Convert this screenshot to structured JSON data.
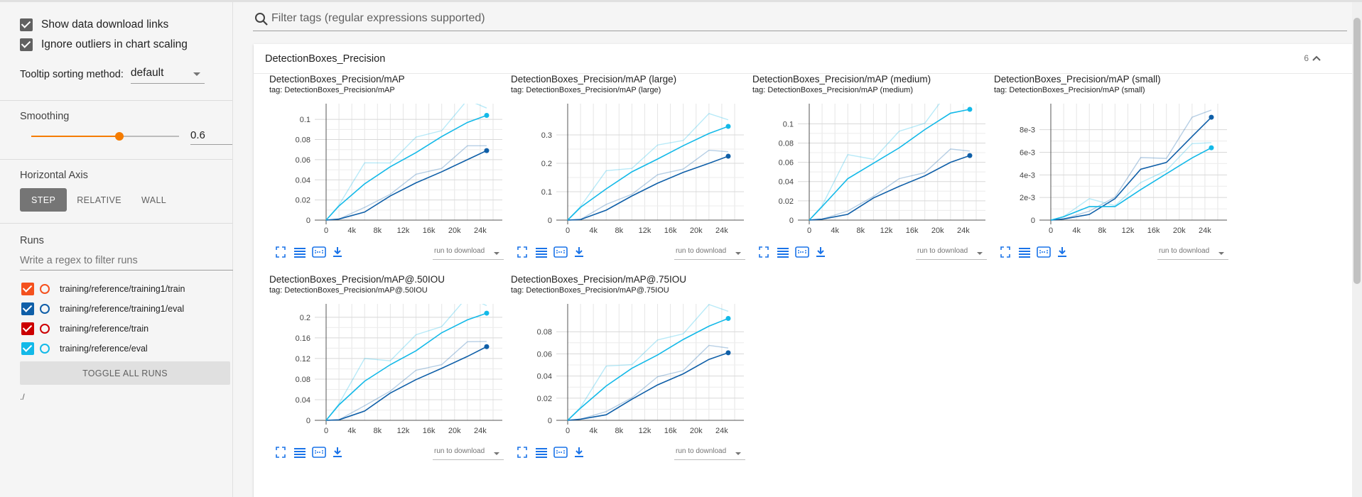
{
  "sidebar": {
    "show_download_links": "Show data download links",
    "ignore_outliers": "Ignore outliers in chart scaling",
    "tooltip_label": "Tooltip sorting method:",
    "tooltip_value": "default",
    "smoothing_title": "Smoothing",
    "smoothing_value": "0.6",
    "smoothing_level": 0.6,
    "horizontal_axis_title": "Horizontal Axis",
    "axis_buttons": [
      "STEP",
      "RELATIVE",
      "WALL"
    ],
    "runs_title": "Runs",
    "runs_filter_placeholder": "Write a regex to filter runs",
    "runs": [
      {
        "name": "training/reference/training1/train",
        "color": "#f4511e"
      },
      {
        "name": "training/reference/training1/eval",
        "color": "#0f5fa8"
      },
      {
        "name": "training/reference/train",
        "color": "#cc0000"
      },
      {
        "name": "training/reference/eval",
        "color": "#13b9e8"
      }
    ],
    "toggle_all": "TOGGLE ALL RUNS",
    "logdir": "./"
  },
  "main": {
    "filter_placeholder": "Filter tags (regular expressions supported)",
    "card_title": "DetectionBoxes_Precision",
    "card_count": "6",
    "download_label": "run to download"
  },
  "colors": {
    "dark_series": "#0f5fa8",
    "light_series": "#13b9e8",
    "accent": "#f57c00"
  },
  "chart_data": [
    {
      "type": "line",
      "title": "DetectionBoxes_Precision/mAP",
      "tag": "tag: DetectionBoxes_Precision/mAP",
      "xticks": [
        "0",
        "4k",
        "8k",
        "12k",
        "16k",
        "20k",
        "24k"
      ],
      "yticks": [
        "0",
        "0.02",
        "0.04",
        "0.06",
        "0.08",
        "0.1"
      ],
      "ylim": [
        0,
        0.11
      ],
      "series": [
        {
          "x": [
            0,
            2000,
            6000,
            10000,
            14000,
            18000,
            22000,
            25000
          ],
          "y": [
            0,
            0.001,
            0.008,
            0.024,
            0.037,
            0.048,
            0.06,
            0.069
          ]
        },
        {
          "x": [
            0,
            2000,
            6000,
            10000,
            14000,
            18000,
            22000,
            25000
          ],
          "y": [
            0,
            0.014,
            0.036,
            0.053,
            0.067,
            0.083,
            0.097,
            0.104
          ]
        }
      ]
    },
    {
      "type": "line",
      "title": "DetectionBoxes_Precision/mAP (large)",
      "tag": "tag: DetectionBoxes_Precision/mAP (large)",
      "xticks": [
        "0",
        "4k",
        "8k",
        "12k",
        "16k",
        "20k",
        "24k"
      ],
      "yticks": [
        "0",
        "0.1",
        "0.2",
        "0.3"
      ],
      "ylim": [
        0,
        0.39
      ],
      "series": [
        {
          "x": [
            0,
            2000,
            6000,
            10000,
            14000,
            18000,
            22000,
            25000
          ],
          "y": [
            0,
            0.002,
            0.035,
            0.085,
            0.13,
            0.168,
            0.2,
            0.225
          ]
        },
        {
          "x": [
            0,
            2000,
            6000,
            10000,
            14000,
            18000,
            22000,
            25000
          ],
          "y": [
            0,
            0.045,
            0.11,
            0.17,
            0.215,
            0.262,
            0.305,
            0.33
          ]
        }
      ]
    },
    {
      "type": "line",
      "title": "DetectionBoxes_Precision/mAP (medium)",
      "tag": "tag: DetectionBoxes_Precision/mAP (medium)",
      "xticks": [
        "0",
        "4k",
        "8k",
        "12k",
        "16k",
        "20k",
        "24k"
      ],
      "yticks": [
        "0",
        "0.02",
        "0.04",
        "0.06",
        "0.08",
        "0.1"
      ],
      "ylim": [
        0,
        0.115
      ],
      "series": [
        {
          "x": [
            0,
            2000,
            6000,
            10000,
            14000,
            18000,
            22000,
            25000
          ],
          "y": [
            0,
            0.001,
            0.006,
            0.023,
            0.035,
            0.046,
            0.06,
            0.067
          ]
        },
        {
          "x": [
            0,
            2000,
            6000,
            10000,
            14000,
            18000,
            22000,
            25000
          ],
          "y": [
            0,
            0.014,
            0.043,
            0.059,
            0.075,
            0.094,
            0.111,
            0.115
          ]
        }
      ]
    },
    {
      "type": "line",
      "title": "DetectionBoxes_Precision/mAP (small)",
      "tag": "tag: DetectionBoxes_Precision/mAP (small)",
      "xticks": [
        "0",
        "4k",
        "8k",
        "12k",
        "16k",
        "20k",
        "24k"
      ],
      "yticks": [
        "0",
        "2e-3",
        "4e-3",
        "6e-3",
        "8e-3"
      ],
      "ylim": [
        0,
        0.0098
      ],
      "series": [
        {
          "x": [
            0,
            2000,
            6000,
            10000,
            14000,
            18000,
            22000,
            25000
          ],
          "y": [
            0,
            0.0001,
            0.0005,
            0.0019,
            0.0045,
            0.0051,
            0.0074,
            0.0091
          ]
        },
        {
          "x": [
            0,
            2000,
            6000,
            10000,
            14000,
            18000,
            22000,
            25000
          ],
          "y": [
            0,
            0.0003,
            0.0012,
            0.0012,
            0.0027,
            0.0041,
            0.0055,
            0.0064
          ]
        }
      ]
    },
    {
      "type": "line",
      "title": "DetectionBoxes_Precision/mAP@.50IOU",
      "tag": "tag: DetectionBoxes_Precision/mAP@.50IOU",
      "xticks": [
        "0",
        "4k",
        "8k",
        "12k",
        "16k",
        "20k",
        "24k"
      ],
      "yticks": [
        "0",
        "0.04",
        "0.08",
        "0.12",
        "0.16",
        "0.2"
      ],
      "ylim": [
        0,
        0.215
      ],
      "series": [
        {
          "x": [
            0,
            2000,
            6000,
            10000,
            14000,
            18000,
            22000,
            25000
          ],
          "y": [
            0,
            0.001,
            0.018,
            0.053,
            0.079,
            0.101,
            0.124,
            0.143
          ]
        },
        {
          "x": [
            0,
            2000,
            6000,
            10000,
            14000,
            18000,
            22000,
            25000
          ],
          "y": [
            0,
            0.03,
            0.076,
            0.108,
            0.135,
            0.17,
            0.195,
            0.208
          ]
        }
      ]
    },
    {
      "type": "line",
      "title": "DetectionBoxes_Precision/mAP@.75IOU",
      "tag": "tag: DetectionBoxes_Precision/mAP@.75IOU",
      "xticks": [
        "0",
        "4k",
        "8k",
        "12k",
        "16k",
        "20k",
        "24k"
      ],
      "yticks": [
        "0",
        "0.02",
        "0.04",
        "0.06",
        "0.08"
      ],
      "ylim": [
        0,
        0.1
      ],
      "series": [
        {
          "x": [
            0,
            2000,
            6000,
            10000,
            14000,
            18000,
            22000,
            25000
          ],
          "y": [
            0,
            0.001,
            0.005,
            0.019,
            0.032,
            0.042,
            0.055,
            0.061
          ]
        },
        {
          "x": [
            0,
            2000,
            6000,
            10000,
            14000,
            18000,
            22000,
            25000
          ],
          "y": [
            0,
            0.011,
            0.031,
            0.047,
            0.059,
            0.073,
            0.085,
            0.092
          ]
        }
      ]
    }
  ]
}
